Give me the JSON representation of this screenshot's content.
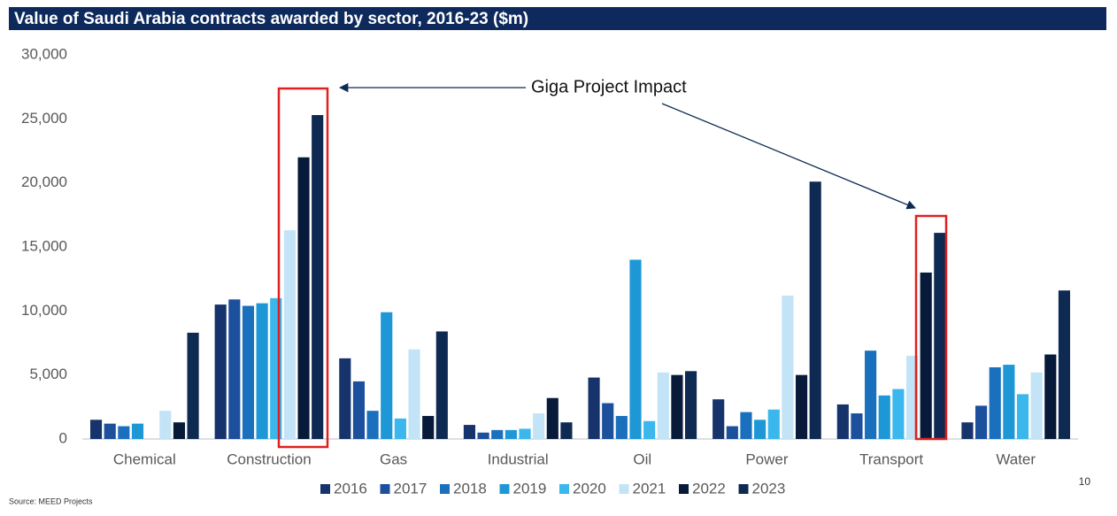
{
  "chart_data": {
    "type": "bar",
    "title": "Value of Saudi Arabia contracts awarded by sector, 2016-23 ($m)",
    "annotation": "Giga Project Impact",
    "source": "Source: MEED Projects",
    "page_number": "10",
    "categories": [
      "Chemical",
      "Construction",
      "Gas",
      "Industrial",
      "Oil",
      "Power",
      "Transport",
      "Water"
    ],
    "series": [
      {
        "name": "2016",
        "color": "#17336b",
        "values": [
          1500,
          10500,
          6300,
          1100,
          4800,
          3100,
          2700,
          1300
        ]
      },
      {
        "name": "2017",
        "color": "#1c4f9c",
        "values": [
          1200,
          10900,
          4500,
          500,
          2800,
          1000,
          2000,
          2600
        ]
      },
      {
        "name": "2018",
        "color": "#1a70bd",
        "values": [
          1000,
          10400,
          2200,
          700,
          1800,
          2100,
          6900,
          5600
        ]
      },
      {
        "name": "2019",
        "color": "#1e97d6",
        "values": [
          1200,
          10600,
          9900,
          700,
          14000,
          1500,
          3400,
          5800
        ]
      },
      {
        "name": "2020",
        "color": "#3ab7ec",
        "values": [
          0,
          11000,
          1600,
          800,
          1400,
          2300,
          3900,
          3500
        ]
      },
      {
        "name": "2021",
        "color": "#c3e4f6",
        "values": [
          2200,
          16300,
          7000,
          2000,
          5200,
          11200,
          6500,
          5200
        ]
      },
      {
        "name": "2022",
        "color": "#071a3a",
        "values": [
          1300,
          22000,
          1800,
          3200,
          5000,
          5000,
          13000,
          6600
        ]
      },
      {
        "name": "2023",
        "color": "#0e2a52",
        "values": [
          8300,
          25300,
          8400,
          1300,
          5300,
          20100,
          16100,
          11600
        ]
      }
    ],
    "ylim": [
      0,
      30000
    ],
    "yticks": [
      0,
      {
        "value": 5000,
        "label": "5,000"
      },
      {
        "value": 10000,
        "label": "10,000"
      },
      {
        "value": 15000,
        "label": "15,000"
      },
      {
        "value": 20000,
        "label": "20,000"
      },
      {
        "value": 25000,
        "label": "25,000"
      },
      {
        "value": 30000,
        "label": "30,000"
      }
    ],
    "grid": false,
    "legend": "bottom"
  }
}
